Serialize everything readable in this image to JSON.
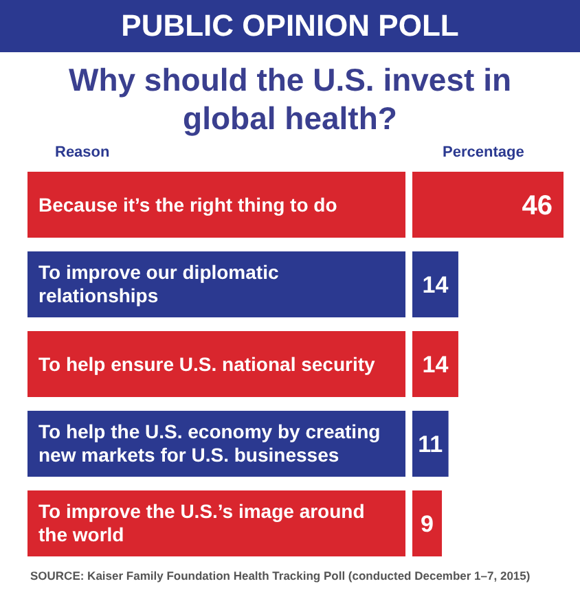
{
  "chart_data": {
    "type": "bar",
    "orientation": "horizontal",
    "title": "PUBLIC OPINION POLL",
    "subtitle": "Why should the U.S. invest in global health?",
    "ylabel": "Reason",
    "xlabel": "Percentage",
    "categories": [
      "Because it’s the right thing to do",
      "To improve our diplomatic relationships",
      "To help ensure U.S. national security",
      "To help the U.S. economy by creating new markets for U.S. businesses",
      "To improve the U.S.’s image around the world"
    ],
    "values": [
      46,
      14,
      14,
      11,
      9
    ],
    "colors": [
      "#d9262e",
      "#2b3990",
      "#d9262e",
      "#2b3990",
      "#d9262e"
    ],
    "data_labels": true,
    "annotations": [
      "SOURCE: Kaiser Family Foundation Health Tracking Poll (conducted December 1–7, 2015)"
    ]
  }
}
